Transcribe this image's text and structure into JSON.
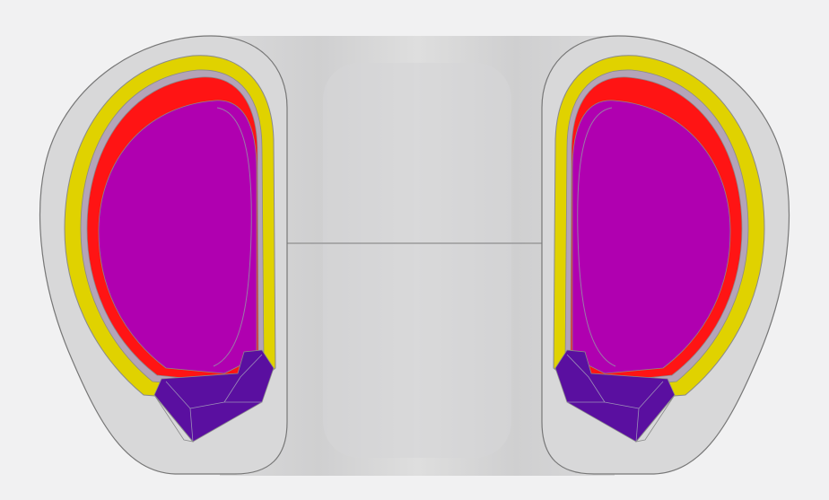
{
  "figure": {
    "kind": "tokamak poloidal cross-section",
    "components": [
      {
        "id": "outer-vessel",
        "color": "#d8d8d9"
      },
      {
        "id": "central-column",
        "color": "#dadada"
      },
      {
        "id": "blanket-layer",
        "color": "#e0d200"
      },
      {
        "id": "first-wall-layer",
        "color": "#ff1414"
      },
      {
        "id": "plasma-region",
        "color": "#b000b0"
      },
      {
        "id": "divertor",
        "color": "#5a0fa0"
      }
    ],
    "outline_color": "#8a8a8a",
    "background": "#f1f1f2"
  }
}
